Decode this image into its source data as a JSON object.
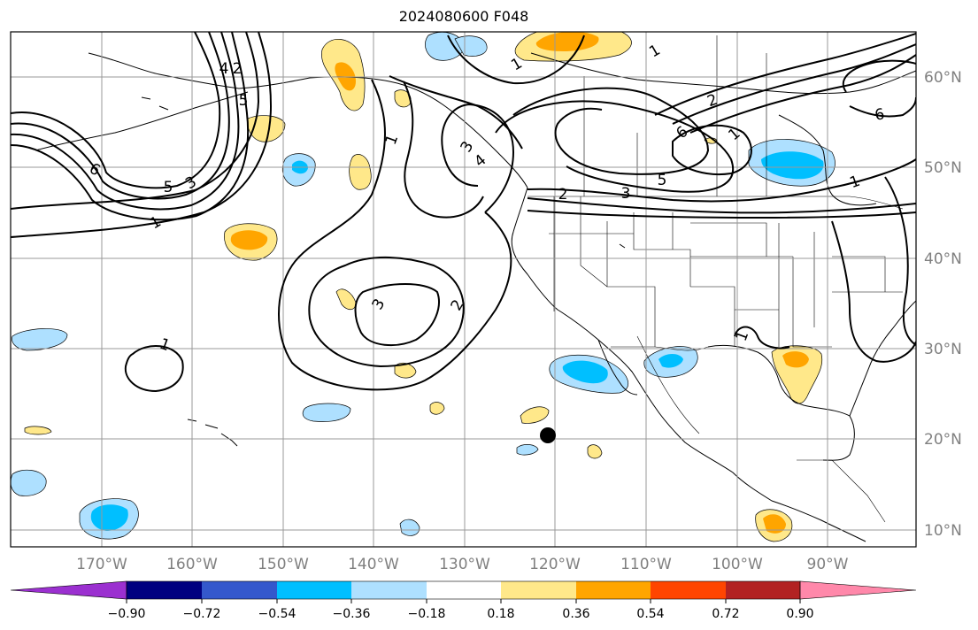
{
  "map": {
    "title": "2024080600 F048",
    "lon_labels": [
      "170°W",
      "160°W",
      "150°W",
      "140°W",
      "130°W",
      "120°W",
      "110°W",
      "100°W",
      "90°W"
    ],
    "lat_labels": [
      "60°N",
      "50°N",
      "40°N",
      "30°N",
      "20°N",
      "10°N"
    ],
    "contour_labels": [
      {
        "text": "6",
        "role": "western-trough"
      },
      {
        "text": "5",
        "role": "western-trough"
      },
      {
        "text": "3",
        "role": "western-trough"
      },
      {
        "text": "1",
        "role": "western-trough"
      },
      {
        "text": "2",
        "role": "alaska-ridge"
      },
      {
        "text": "4",
        "role": "alaska-ridge"
      },
      {
        "text": "5",
        "role": "alaska-ridge"
      },
      {
        "text": "1",
        "role": "gulf-of-alaska"
      },
      {
        "text": "3",
        "role": "gulf-of-alaska"
      },
      {
        "text": "4",
        "role": "gulf-of-alaska"
      },
      {
        "text": "1",
        "role": "north-pacific"
      },
      {
        "text": "3",
        "role": "subtropical-high"
      },
      {
        "text": "2",
        "role": "subtropical-high"
      },
      {
        "text": "1",
        "role": "hawaii-low"
      },
      {
        "text": "2",
        "role": "canada-jet"
      },
      {
        "text": "3",
        "role": "canada-jet"
      },
      {
        "text": "5",
        "role": "canada-jet"
      },
      {
        "text": "6",
        "role": "canada-jet"
      },
      {
        "text": "2",
        "role": "canada-jet"
      },
      {
        "text": "1",
        "role": "canada-jet"
      },
      {
        "text": "1",
        "role": "yukon"
      },
      {
        "text": "6",
        "role": "hudson-bay"
      },
      {
        "text": "1",
        "role": "great-lakes"
      },
      {
        "text": "1",
        "role": "gulf-of-mexico"
      }
    ],
    "marker": {
      "label": "point-marker",
      "color": "#000000"
    }
  },
  "colorbar": {
    "ticks": [
      "−0.90",
      "−0.72",
      "−0.54",
      "−0.36",
      "−0.18",
      "0.18",
      "0.36",
      "0.54",
      "0.72",
      "0.90"
    ],
    "colors": [
      "#9b30d0",
      "#000080",
      "#3458cc",
      "#00bfff",
      "#aee0ff",
      "#ffffff",
      "#ffe88a",
      "#ffa500",
      "#ff4500",
      "#b22222",
      "#ff88aa"
    ]
  }
}
